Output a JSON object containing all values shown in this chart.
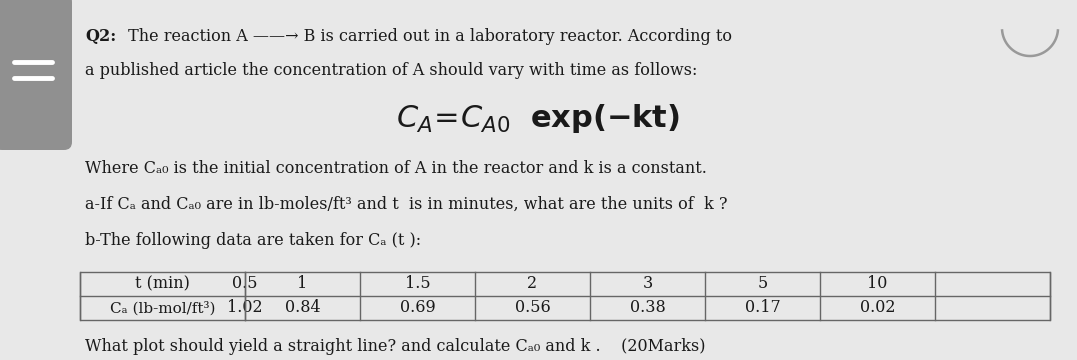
{
  "background_color": "#e8e8e8",
  "left_pill_color": "#909090",
  "title_bold": "Q2:",
  "line1_rest": " The reaction A ——→ B is carried out in a laboratory reactor. According to",
  "line2": "a published article the concentration of A should vary with time as follows:",
  "formula_normal": "Cₐ= Cₐ₀",
  "formula_bold": " exp(-kt)",
  "where_text": "Where Cₐ₀ is the initial concentration of A in the reactor and k is a constant.",
  "part_a": "a-If Cₐ and Cₐ₀ are in lb-moles/ft³ and t  is in minutes, what are the units of  k ?",
  "part_b": "b-The following data are taken for Cₐ (t ):",
  "t_label": "t (min)",
  "ca_label": "Cₐ (lb-mol/ft³)",
  "t_values": [
    "0.5",
    "1",
    "1.5",
    "2",
    "3",
    "5",
    "10"
  ],
  "ca_values": [
    "1.02",
    "0.84",
    "0.69",
    "0.56",
    "0.38",
    "0.17",
    "0.02"
  ],
  "bottom_text": "What plot should yield a straight line? and calculate Cₐ₀ and k .    (20Marks)",
  "text_color": "#1a1a1a",
  "table_line_color": "#666666",
  "font_size_main": 11.5,
  "font_size_formula": 22
}
